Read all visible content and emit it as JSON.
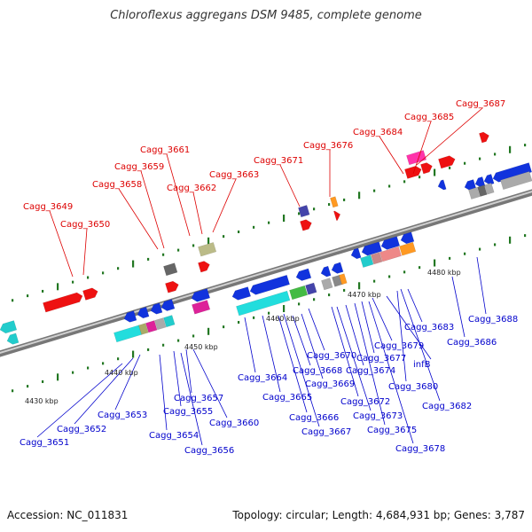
{
  "title": "Chloroflexus aggregans DSM 9485, complete genome",
  "footer": {
    "accession": "Accession: NC_011831",
    "summary": "Topology: circular; Length: 4,684,931 bp; Genes: 3,787"
  },
  "colors": {
    "top_label": "#dd0000",
    "bottom_label": "#0000cc",
    "backbone": "#888888",
    "tick": "#227722"
  },
  "kbp_ticks": [
    "4430 kbp",
    "4440 kbp",
    "4450 kbp",
    "4460 kbp",
    "4470 kbp",
    "4480 kbp"
  ],
  "genes_top": [
    "Cagg_3649",
    "Cagg_3650",
    "Cagg_3658",
    "Cagg_3659",
    "Cagg_3661",
    "Cagg_3662",
    "Cagg_3663",
    "Cagg_3671",
    "Cagg_3676",
    "Cagg_3684",
    "Cagg_3685",
    "Cagg_3687"
  ],
  "genes_bottom": [
    "Cagg_3651",
    "Cagg_3652",
    "Cagg_3653",
    "Cagg_3654",
    "Cagg_3655",
    "Cagg_3656",
    "Cagg_3657",
    "Cagg_3660",
    "Cagg_3664",
    "Cagg_3665",
    "Cagg_3666",
    "Cagg_3667",
    "Cagg_3668",
    "Cagg_3669",
    "Cagg_3670",
    "Cagg_3672",
    "Cagg_3673",
    "Cagg_3674",
    "Cagg_3675",
    "Cagg_3677",
    "Cagg_3678",
    "Cagg_3679",
    "infB",
    "Cagg_3680",
    "Cagg_3682",
    "Cagg_3683",
    "Cagg_3686",
    "Cagg_3688"
  ]
}
